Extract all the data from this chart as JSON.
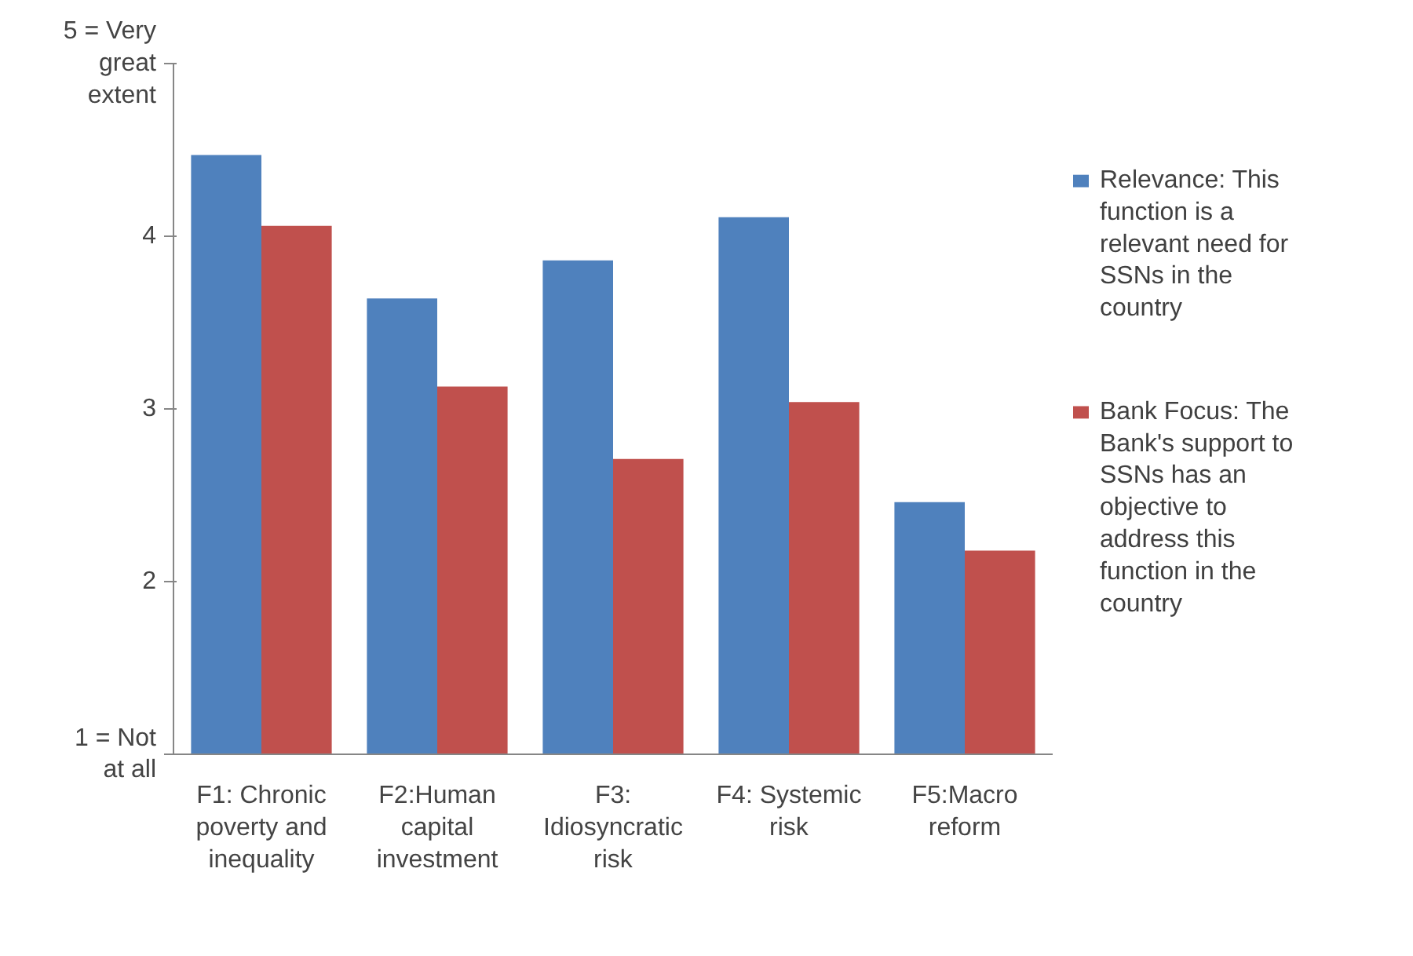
{
  "chart_data": {
    "type": "bar",
    "categories": [
      "F1: Chronic poverty and inequality",
      "F2:Human capital investment",
      "F3: Idiosyncratic risk",
      "F4: Systemic risk",
      "F5:Macro reform"
    ],
    "series": [
      {
        "name": "Relevance: This function is a relevant need for SSNs in the country",
        "color": "#4f81bd",
        "values": [
          4.47,
          3.64,
          3.86,
          4.11,
          2.46
        ]
      },
      {
        "name": "Bank Focus: The Bank's support to SSNs has an objective to address this function in the country",
        "color": "#c0504d",
        "values": [
          4.06,
          3.13,
          2.71,
          3.04,
          2.18
        ]
      }
    ],
    "ylim": [
      1,
      5
    ],
    "yticks": [
      {
        "value": 1,
        "label": "1 = Not at all"
      },
      2,
      3,
      4,
      {
        "value": 5,
        "label": "5 = Very great extent"
      }
    ],
    "grid": false,
    "legend": "right"
  }
}
